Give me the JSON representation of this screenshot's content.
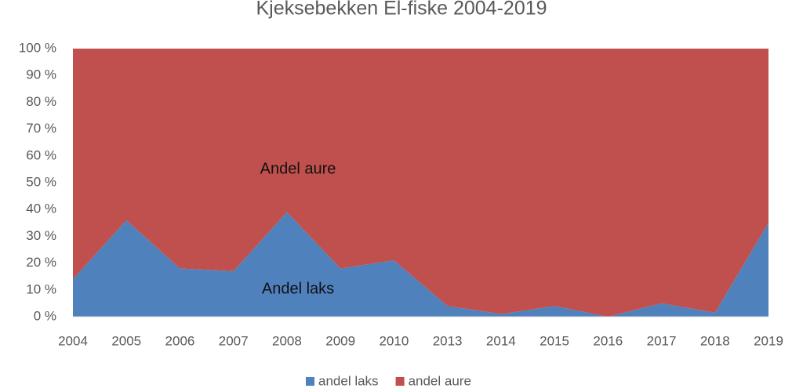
{
  "chart_data": {
    "type": "stacked_area_100",
    "title": "Kjeksebekken El-fiske 2004-2019",
    "categories": [
      "2004",
      "2005",
      "2006",
      "2007",
      "2008",
      "2009",
      "2010",
      "2013",
      "2014",
      "2015",
      "2016",
      "2017",
      "2018",
      "2019"
    ],
    "series": [
      {
        "name": "andel laks",
        "color": "#4f81bd",
        "values": [
          14,
          36,
          18,
          17,
          39,
          18,
          21,
          4,
          1,
          4,
          0,
          5,
          1.5,
          35
        ]
      },
      {
        "name": "andel aure",
        "color": "#c0504d",
        "values": [
          86,
          64,
          82,
          83,
          61,
          82,
          79,
          96,
          99,
          96,
          100,
          95,
          98.5,
          65
        ]
      }
    ],
    "annotations": [
      "Andel aure",
      "Andel laks"
    ],
    "ylim": [
      0,
      100
    ],
    "yticks": [
      {
        "value": 0,
        "label": "0 %"
      },
      {
        "value": 10,
        "label": "10 %"
      },
      {
        "value": 20,
        "label": "20 %"
      },
      {
        "value": 30,
        "label": "30 %"
      },
      {
        "value": 40,
        "label": "40 %"
      },
      {
        "value": 50,
        "label": "50 %"
      },
      {
        "value": 60,
        "label": "60 %"
      },
      {
        "value": 70,
        "label": "70 %"
      },
      {
        "value": 80,
        "label": "80 %"
      },
      {
        "value": 90,
        "label": "90 %"
      },
      {
        "value": 100,
        "label": "100 %"
      }
    ],
    "grid": false,
    "legend": "bottom"
  }
}
